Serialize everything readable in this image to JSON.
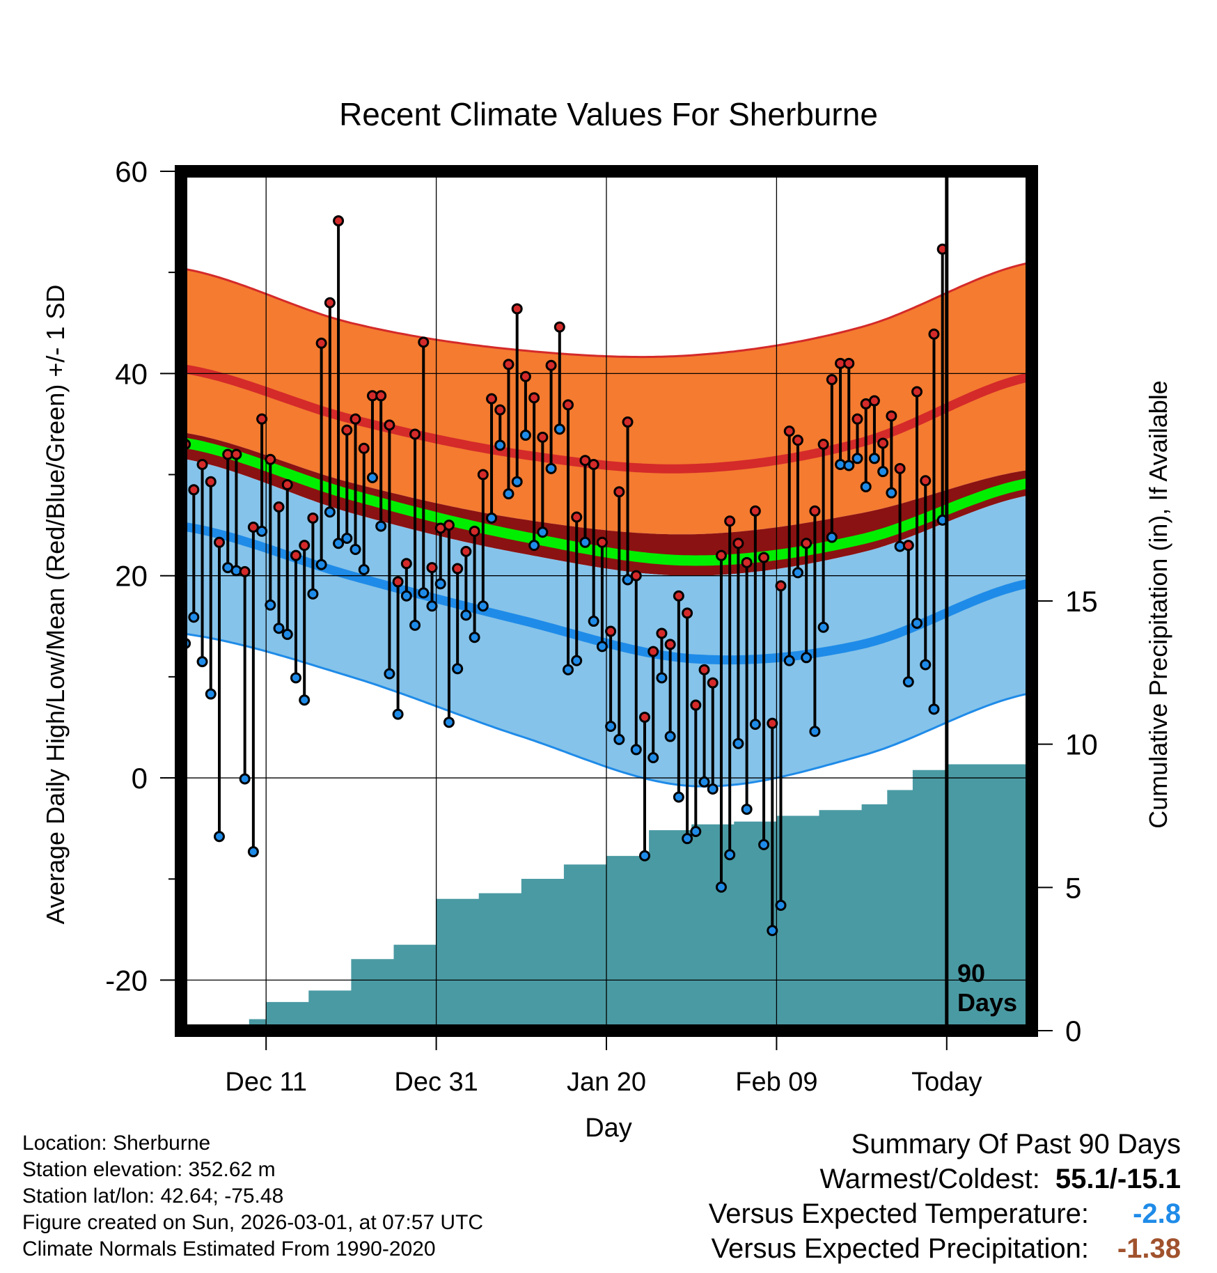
{
  "title": "Recent Climate Values For Sherburne",
  "ylabel": "Average Daily High/Low/Mean (Red/Blue/Green) +/- 1 SD",
  "y2label": "Cumulative Precipitation (in), If Available",
  "xlabel": "Day",
  "xticks": [
    "Dec 11",
    "Dec 31",
    "Jan 20",
    "Feb 09",
    "Today"
  ],
  "yticks": [
    "60",
    "40",
    "20",
    "0",
    "-20"
  ],
  "y2ticks": [
    "15",
    "10",
    "5",
    "0"
  ],
  "today_marker": {
    "line1": "90",
    "line2": "Days"
  },
  "colors": {
    "high_band": "#f47b30",
    "high_line": "#d42a2a",
    "mean_band": "#8b1212",
    "mean_line": "#00ee00",
    "low_band": "#85c3ea",
    "low_line": "#1f8be8",
    "precip": "#4a9aa3",
    "high_dot": "#d42a2a",
    "low_dot": "#1f8be8"
  },
  "footer": {
    "location": "Location: Sherburne",
    "elevation": "Station elevation: 352.62 m",
    "latlon": "Station lat/lon: 42.64; -75.48",
    "created": "Figure created on Sun, 2026-03-01, at 07:57 UTC",
    "normals": "Climate Normals Estimated From 1990-2020"
  },
  "summary": {
    "heading": "Summary Of Past 90 Days",
    "warmest_label": "Warmest/Coldest:",
    "warmest_value": "55.1/-15.1",
    "temp_label": "Versus Expected Temperature:",
    "temp_value": "-2.8",
    "precip_label": "Versus Expected Precipitation:",
    "precip_value": "-1.38"
  },
  "chart_data": {
    "type": "line",
    "title": "Recent Climate Values For Sherburne",
    "xlabel": "Day",
    "ylabel": "Average Daily High/Low/Mean (Red/Blue/Green) +/- 1 SD",
    "y2label": "Cumulative Precipitation (in), If Available",
    "ylim": [
      -25,
      60
    ],
    "y2lim": [
      0,
      30
    ],
    "x_days_before_today_range": [
      -90,
      10
    ],
    "x_tick_days": [
      -80,
      -60,
      -40,
      -20,
      0
    ],
    "x_tick_labels": [
      "Dec 11",
      "Dec 31",
      "Jan 20",
      "Feb 09",
      "Today"
    ],
    "normals_days_before_today": [
      -90,
      -70,
      -50,
      -30,
      -10,
      10
    ],
    "normal_high": [
      40.5,
      35.5,
      32,
      30.6,
      33.2,
      39.7
    ],
    "normal_high_sd_upper": [
      50.4,
      45,
      42.3,
      41.8,
      44.6,
      51
    ],
    "normal_mean_upper": [
      34.2,
      29.2,
      25.6,
      24.1,
      26.2,
      30.5
    ],
    "normal_mean": [
      33.2,
      28,
      23.9,
      21.5,
      23.6,
      29.2
    ],
    "normal_mean_lower": [
      31.6,
      26.2,
      22.2,
      20,
      22.3,
      28
    ],
    "normal_low": [
      24.9,
      20,
      15.6,
      11.8,
      13.2,
      19.3
    ],
    "normal_low_sd_lower": [
      14.3,
      10,
      4.1,
      -0.8,
      2.2,
      8.4
    ],
    "obs_days_before_today": [
      -90,
      -89,
      -88,
      -87,
      -86,
      -85,
      -84,
      -83,
      -82,
      -81,
      -80,
      -79,
      -78,
      -77,
      -76,
      -75,
      -74,
      -73,
      -72,
      -71,
      -70,
      -69,
      -68,
      -67,
      -66,
      -65,
      -64,
      -63,
      -62,
      -61,
      -60,
      -59,
      -58,
      -57,
      -56,
      -55,
      -54,
      -53,
      -52,
      -51,
      -50,
      -49,
      -48,
      -47,
      -46,
      -45,
      -44,
      -43,
      -42,
      -41,
      -40,
      -39,
      -38,
      -37,
      -36,
      -35,
      -34,
      -33,
      -32,
      -31,
      -30,
      -29,
      -28,
      -27,
      -26,
      -25,
      -24,
      -23,
      -22,
      -21,
      -20,
      -19,
      -18,
      -17,
      -16,
      -15,
      -14,
      -13,
      -12,
      -11,
      -10,
      -9,
      -8,
      -7,
      -6,
      -5,
      -4,
      -3,
      -2,
      -1
    ],
    "daily_high": [
      33,
      28.5,
      31,
      29.3,
      23.3,
      32,
      32,
      20.4,
      24.8,
      35.5,
      31.5,
      26.8,
      29,
      22,
      23,
      25.7,
      43,
      47,
      55.1,
      34.4,
      35.5,
      32.6,
      37.8,
      37.8,
      34.9,
      19.4,
      21.2,
      34,
      43.1,
      20.8,
      24.7,
      25,
      20.7,
      22.4,
      24.4,
      30,
      37.5,
      36.4,
      40.9,
      46.4,
      39.7,
      37.6,
      33.7,
      40.8,
      44.6,
      36.9,
      25.8,
      31.4,
      31,
      23.3,
      14.5,
      28.3,
      35.2,
      20,
      6,
      12.5,
      14.3,
      13.2,
      18,
      16.3,
      7.2,
      10.7,
      9.4,
      22,
      25.4,
      23.2,
      21.3,
      26.4,
      21.8,
      5.4,
      19,
      34.3,
      33.4,
      23.2,
      26.4,
      33,
      39.4,
      41,
      41,
      35.5,
      37,
      37.3,
      33.1,
      35.8,
      30.6,
      23,
      38.2,
      29.4,
      43.9,
      52.3
    ],
    "daily_low": [
      13.3,
      15.9,
      11.5,
      8.3,
      -5.8,
      20.8,
      20.5,
      -0.1,
      -7.3,
      24.4,
      17.1,
      14.8,
      14.2,
      9.9,
      7.7,
      18.2,
      21.1,
      26.3,
      23.2,
      23.7,
      22.6,
      20.6,
      29.7,
      24.9,
      10.3,
      6.3,
      18,
      15.1,
      18.3,
      17,
      19.2,
      5.5,
      10.8,
      16.1,
      13.9,
      17,
      25.7,
      32.9,
      28.1,
      29.3,
      33.9,
      23,
      24.3,
      30.6,
      34.5,
      10.7,
      11.6,
      23.3,
      15.5,
      13,
      5.1,
      3.8,
      19.6,
      2.8,
      -7.7,
      2,
      9.9,
      4.1,
      -1.9,
      -6,
      -5.3,
      -0.4,
      -1.1,
      -10.8,
      -7.6,
      3.4,
      -3.1,
      5.3,
      -6.6,
      -15.1,
      -12.6,
      11.6,
      20.3,
      11.9,
      4.6,
      14.9,
      23.8,
      31,
      30.9,
      31.6,
      28.8,
      31.6,
      30.3,
      28.2,
      22.9,
      9.5,
      15.3,
      11.2,
      6.8,
      25.5
    ],
    "cumulative_precip_days_before_today": [
      -90,
      -88,
      -82,
      -80,
      -75,
      -70,
      -65,
      -60,
      -55,
      -50,
      -45,
      -40,
      -35,
      -30,
      -25,
      -20,
      -15,
      -10,
      -7,
      -4,
      0,
      10
    ],
    "cumulative_precip": [
      0,
      0.2,
      0.4,
      1,
      1.4,
      2.5,
      3,
      4.6,
      4.8,
      5.3,
      5.8,
      6.1,
      7,
      7.2,
      7.3,
      7.5,
      7.7,
      7.9,
      8.4,
      9.1,
      9.3,
      9.3
    ]
  }
}
